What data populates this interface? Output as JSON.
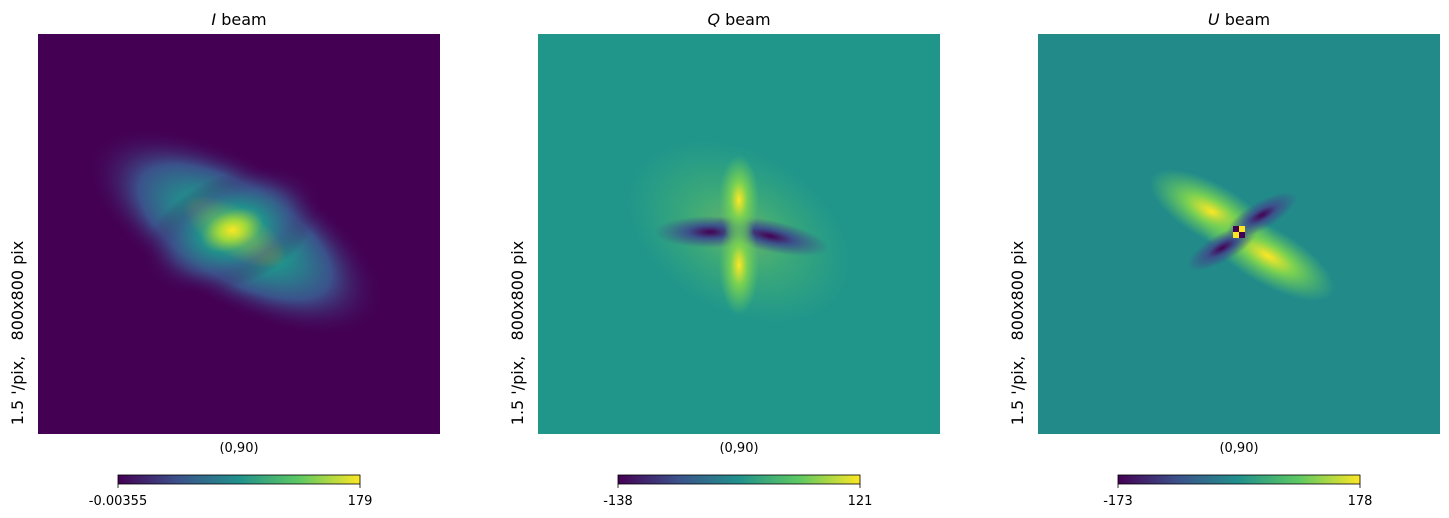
{
  "panels": [
    {
      "title_symbol": "I",
      "title_text": "beam",
      "ylabel": "1.5 '/pix,   800x800 pix",
      "xlabel": "(0,90)",
      "colorbar": {
        "min": -0.00355,
        "max": 179
      }
    },
    {
      "title_symbol": "Q",
      "title_text": "beam",
      "ylabel": "1.5 '/pix,   800x800 pix",
      "xlabel": "(0,90)",
      "colorbar": {
        "min": -138,
        "max": 121
      }
    },
    {
      "title_symbol": "U",
      "title_text": "beam",
      "ylabel": "1.5 '/pix,   800x800 pix",
      "xlabel": "(0,90)",
      "colorbar": {
        "min": -173,
        "max": 178
      }
    }
  ]
}
